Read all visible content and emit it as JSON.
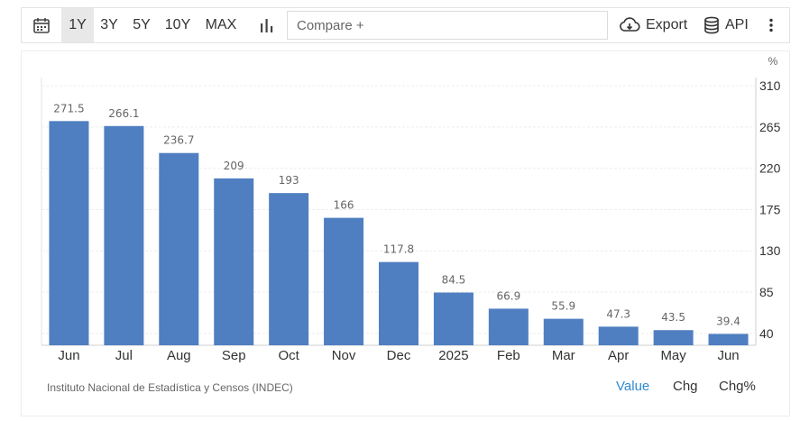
{
  "toolbar": {
    "ranges": [
      "1Y",
      "3Y",
      "5Y",
      "10Y",
      "MAX"
    ],
    "active_range": "1Y",
    "compare_placeholder": "Compare +",
    "export_label": "Export",
    "api_label": "API"
  },
  "source": "Instituto Nacional de Estadística y Censos (INDEC)",
  "view_tabs": [
    "Value",
    "Chg",
    "Chg%"
  ],
  "active_view": "Value",
  "colors": {
    "bar": "#4f7fc1",
    "active_tab": "#2f8bd1",
    "active_range_bg": "#e8e8e8"
  },
  "chart_data": {
    "type": "bar",
    "categories": [
      "Jun",
      "Jul",
      "Aug",
      "Sep",
      "Oct",
      "Nov",
      "Dec",
      "2025",
      "Feb",
      "Mar",
      "Apr",
      "May",
      "Jun"
    ],
    "values": [
      271.5,
      266.1,
      236.7,
      209,
      193,
      166,
      117.8,
      84.5,
      66.9,
      55.9,
      47.3,
      43.5,
      39.4
    ],
    "value_labels": [
      "271.5",
      "266.1",
      "236.7",
      "209",
      "193",
      "166",
      "117.8",
      "84.5",
      "66.9",
      "55.9",
      "47.3",
      "43.5",
      "39.4"
    ],
    "unit": "%",
    "y_ticks": [
      40,
      85,
      130,
      175,
      220,
      265,
      310
    ],
    "ylim": [
      27,
      319
    ],
    "y_axis_position": "right",
    "grid": true
  }
}
